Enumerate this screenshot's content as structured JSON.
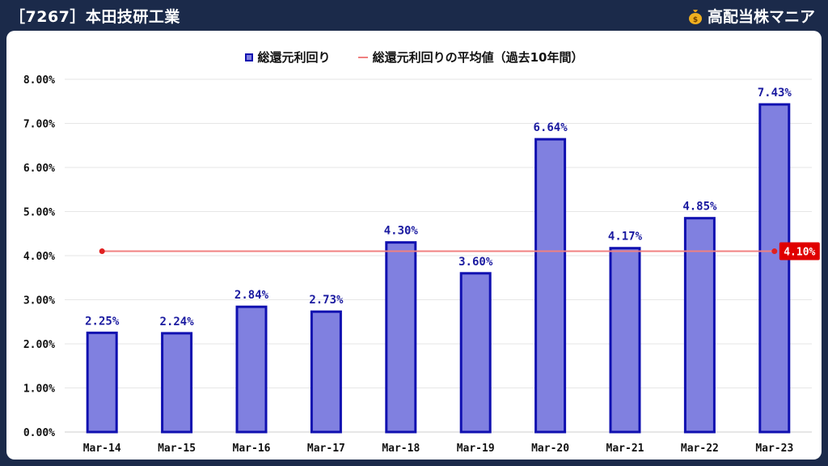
{
  "header": {
    "title": "［7267］本田技研工業",
    "brand": "高配当株マニア",
    "brand_icon": "money-bag-icon"
  },
  "legend": {
    "bar_label": "総還元利回り",
    "line_label": "総還元利回りの平均値（過去10年間）"
  },
  "colors": {
    "bar_fill": "#8080e0",
    "bar_stroke": "#1010b0",
    "label_text": "#1a1aa0",
    "avg_line": "#f08080",
    "avg_marker": "#e02020",
    "avg_badge_bg": "#e00000",
    "header_bg": "#1b2a4a"
  },
  "chart_data": {
    "type": "bar",
    "categories": [
      "Mar-14",
      "Mar-15",
      "Mar-16",
      "Mar-17",
      "Mar-18",
      "Mar-19",
      "Mar-20",
      "Mar-21",
      "Mar-22",
      "Mar-23"
    ],
    "series": [
      {
        "name": "総還元利回り",
        "values": [
          2.25,
          2.24,
          2.84,
          2.73,
          4.3,
          3.6,
          6.64,
          4.17,
          4.85,
          7.43
        ],
        "labels": [
          "2.25%",
          "2.24%",
          "2.84%",
          "2.73%",
          "4.30%",
          "3.60%",
          "6.64%",
          "4.17%",
          "4.85%",
          "7.43%"
        ]
      },
      {
        "name": "総還元利回りの平均値（過去10年間）",
        "type": "line",
        "value": 4.1,
        "label": "4.10%"
      }
    ],
    "yticks": [
      "0.00%",
      "1.00%",
      "2.00%",
      "3.00%",
      "4.00%",
      "5.00%",
      "6.00%",
      "7.00%",
      "8.00%"
    ],
    "ylim": [
      0,
      8
    ],
    "grid": true,
    "legend_position": "top"
  }
}
